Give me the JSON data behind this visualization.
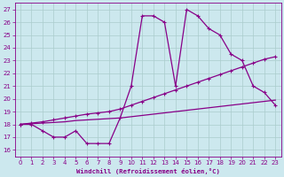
{
  "xlabel": "Windchill (Refroidissement éolien,°C)",
  "bg_color": "#cce8ee",
  "grid_color": "#aacccc",
  "line_color": "#880088",
  "xlim": [
    -0.5,
    23.5
  ],
  "ylim": [
    15.5,
    27.5
  ],
  "xticks": [
    0,
    1,
    2,
    3,
    4,
    5,
    6,
    7,
    8,
    9,
    10,
    11,
    12,
    13,
    14,
    15,
    16,
    17,
    18,
    19,
    20,
    21,
    22,
    23
  ],
  "yticks": [
    16,
    17,
    18,
    19,
    20,
    21,
    22,
    23,
    24,
    25,
    26,
    27
  ],
  "line1_x": [
    0,
    1,
    2,
    3,
    4,
    5,
    6,
    7,
    8,
    9,
    10,
    11,
    12,
    13,
    14,
    15,
    16,
    17,
    18,
    19,
    20,
    21,
    22,
    23
  ],
  "line1_y": [
    18,
    18,
    17.5,
    17,
    17,
    17.5,
    16.5,
    16.5,
    16.5,
    18.5,
    21,
    26.5,
    26.5,
    26,
    21,
    27,
    26.5,
    25.5,
    25,
    23.5,
    23,
    21,
    20.5,
    19.5
  ],
  "line2_x": [
    0,
    1,
    2,
    3,
    4,
    5,
    6,
    7,
    8,
    9,
    10,
    11,
    12,
    13,
    14,
    15,
    16,
    17,
    18,
    19,
    20,
    21,
    22,
    23
  ],
  "line2_y": [
    18,
    18.1,
    18.2,
    18.35,
    18.5,
    18.65,
    18.8,
    18.9,
    19.0,
    19.2,
    19.5,
    19.8,
    20.1,
    20.4,
    20.7,
    21.0,
    21.3,
    21.6,
    21.9,
    22.2,
    22.5,
    22.8,
    23.1,
    23.3
  ],
  "line3_x": [
    0,
    1,
    2,
    3,
    4,
    5,
    6,
    7,
    8,
    9,
    10,
    11,
    12,
    13,
    14,
    15,
    16,
    17,
    18,
    19,
    20,
    21,
    22,
    23
  ],
  "line3_y": [
    18.0,
    18.05,
    18.1,
    18.15,
    18.2,
    18.3,
    18.35,
    18.4,
    18.45,
    18.5,
    18.6,
    18.7,
    18.8,
    18.9,
    19.0,
    19.1,
    19.2,
    19.3,
    19.4,
    19.5,
    19.6,
    19.7,
    19.8,
    19.9
  ],
  "marker": "+"
}
